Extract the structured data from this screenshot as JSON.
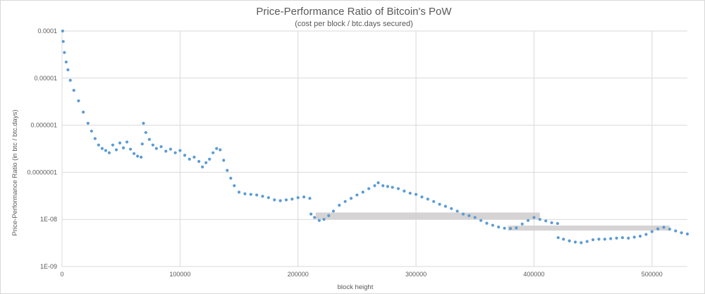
{
  "chart_data": {
    "type": "scatter",
    "title": "Price-Performance Ratio of Bitcoin's PoW",
    "subtitle": "(cost per block / btc.days secured)",
    "xlabel": "block height",
    "ylabel": "Price-Performance Ratio (in btc / btc.days)",
    "xlim": [
      0,
      530000
    ],
    "ylim": [
      1e-09,
      0.0001
    ],
    "yscale": "log",
    "x_ticks": [
      0,
      100000,
      200000,
      300000,
      400000,
      500000
    ],
    "x_tick_labels": [
      "0",
      "100000",
      "200000",
      "300000",
      "400000",
      "500000"
    ],
    "y_ticks": [
      1e-09,
      1e-08,
      1e-07,
      1e-06,
      1e-05,
      0.0001
    ],
    "y_tick_labels": [
      "1E-09",
      "1E-08",
      "0.0000001",
      "0.000001",
      "0.00001",
      "0.0001"
    ],
    "grid": true,
    "series": [
      {
        "name": "price-performance ratio",
        "color": "#5b9bd5",
        "points": [
          [
            500,
            0.0001
          ],
          [
            1000,
            6e-05
          ],
          [
            2000,
            3.5e-05
          ],
          [
            3500,
            2.2e-05
          ],
          [
            5000,
            1.5e-05
          ],
          [
            7000,
            9e-06
          ],
          [
            10000,
            5.5e-06
          ],
          [
            14000,
            3.3e-06
          ],
          [
            18000,
            1.9e-06
          ],
          [
            22000,
            1.1e-06
          ],
          [
            25000,
            7.5e-07
          ],
          [
            28000,
            5.2e-07
          ],
          [
            31000,
            3.8e-07
          ],
          [
            34000,
            3.2e-07
          ],
          [
            37000,
            2.9e-07
          ],
          [
            40000,
            2.6e-07
          ],
          [
            43000,
            3.8e-07
          ],
          [
            46000,
            3e-07
          ],
          [
            49000,
            4.2e-07
          ],
          [
            52000,
            3.3e-07
          ],
          [
            55000,
            4.4e-07
          ],
          [
            58000,
            3.1e-07
          ],
          [
            61000,
            2.5e-07
          ],
          [
            64000,
            2.2e-07
          ],
          [
            67000,
            2.1e-07
          ],
          [
            68000,
            4e-07
          ],
          [
            69000,
            1.1e-06
          ],
          [
            71000,
            7e-07
          ],
          [
            74000,
            5e-07
          ],
          [
            77000,
            3.8e-07
          ],
          [
            80000,
            3.2e-07
          ],
          [
            84000,
            3.5e-07
          ],
          [
            88000,
            2.8e-07
          ],
          [
            92000,
            3.1e-07
          ],
          [
            96000,
            2.6e-07
          ],
          [
            100000,
            2.9e-07
          ],
          [
            104000,
            2.3e-07
          ],
          [
            108000,
            1.9e-07
          ],
          [
            112000,
            2.1e-07
          ],
          [
            116000,
            1.7e-07
          ],
          [
            119000,
            1.3e-07
          ],
          [
            122000,
            1.6e-07
          ],
          [
            125000,
            1.9e-07
          ],
          [
            128000,
            2.6e-07
          ],
          [
            131000,
            3.2e-07
          ],
          [
            134000,
            3e-07
          ],
          [
            137000,
            1.8e-07
          ],
          [
            140000,
            1.1e-07
          ],
          [
            143000,
            7.5e-08
          ],
          [
            146000,
            5.2e-08
          ],
          [
            150000,
            3.8e-08
          ],
          [
            155000,
            3.5e-08
          ],
          [
            160000,
            3.4e-08
          ],
          [
            165000,
            3.3e-08
          ],
          [
            170000,
            3.1e-08
          ],
          [
            175000,
            2.9e-08
          ],
          [
            180000,
            2.6e-08
          ],
          [
            185000,
            2.5e-08
          ],
          [
            190000,
            2.6e-08
          ],
          [
            195000,
            2.7e-08
          ],
          [
            200000,
            2.9e-08
          ],
          [
            205000,
            3e-08
          ],
          [
            210000,
            2.8e-08
          ],
          [
            211000,
            1.3e-08
          ],
          [
            214000,
            1.1e-08
          ],
          [
            218000,
            9.5e-09
          ],
          [
            222000,
            1e-08
          ],
          [
            226000,
            1.2e-08
          ],
          [
            230000,
            1.5e-08
          ],
          [
            235000,
            2e-08
          ],
          [
            240000,
            2.4e-08
          ],
          [
            245000,
            2.8e-08
          ],
          [
            250000,
            3.3e-08
          ],
          [
            255000,
            3.8e-08
          ],
          [
            260000,
            4.5e-08
          ],
          [
            265000,
            5.2e-08
          ],
          [
            268000,
            6e-08
          ],
          [
            272000,
            5.2e-08
          ],
          [
            276000,
            5e-08
          ],
          [
            280000,
            4.8e-08
          ],
          [
            285000,
            4.5e-08
          ],
          [
            290000,
            4e-08
          ],
          [
            295000,
            3.6e-08
          ],
          [
            300000,
            3.4e-08
          ],
          [
            305000,
            3e-08
          ],
          [
            310000,
            2.7e-08
          ],
          [
            315000,
            2.4e-08
          ],
          [
            320000,
            2.1e-08
          ],
          [
            325000,
            1.9e-08
          ],
          [
            330000,
            1.7e-08
          ],
          [
            335000,
            1.5e-08
          ],
          [
            340000,
            1.3e-08
          ],
          [
            345000,
            1.2e-08
          ],
          [
            350000,
            1.1e-08
          ],
          [
            355000,
            9.5e-09
          ],
          [
            360000,
            8.3e-09
          ],
          [
            365000,
            7.5e-09
          ],
          [
            370000,
            6.9e-09
          ],
          [
            375000,
            6.5e-09
          ],
          [
            380000,
            6.4e-09
          ],
          [
            385000,
            6.6e-09
          ],
          [
            390000,
            8e-09
          ],
          [
            395000,
            9.5e-09
          ],
          [
            400000,
            1.1e-08
          ],
          [
            405000,
            1e-08
          ],
          [
            410000,
            9.3e-09
          ],
          [
            415000,
            8.5e-09
          ],
          [
            420000,
            8.2e-09
          ],
          [
            420500,
            4.1e-09
          ],
          [
            425000,
            3.8e-09
          ],
          [
            430000,
            3.5e-09
          ],
          [
            435000,
            3.3e-09
          ],
          [
            440000,
            3.2e-09
          ],
          [
            445000,
            3.4e-09
          ],
          [
            450000,
            3.7e-09
          ],
          [
            455000,
            3.8e-09
          ],
          [
            460000,
            3.8e-09
          ],
          [
            465000,
            3.9e-09
          ],
          [
            470000,
            4e-09
          ],
          [
            475000,
            4.1e-09
          ],
          [
            480000,
            4e-09
          ],
          [
            485000,
            4.2e-09
          ],
          [
            490000,
            4.4e-09
          ],
          [
            495000,
            4.8e-09
          ],
          [
            500000,
            5.5e-09
          ],
          [
            505000,
            6.3e-09
          ],
          [
            510000,
            6.8e-09
          ],
          [
            515000,
            6.2e-09
          ],
          [
            520000,
            5.7e-09
          ],
          [
            525000,
            5.2e-09
          ],
          [
            530000,
            4.9e-09
          ]
        ]
      }
    ],
    "annotations": [
      {
        "type": "band",
        "x": [
          215000,
          405000
        ],
        "y": [
          1e-08,
          1.4e-08
        ]
      },
      {
        "type": "band",
        "x": [
          378000,
          515000
        ],
        "y": [
          5.8e-09,
          7.4e-09
        ]
      }
    ]
  }
}
